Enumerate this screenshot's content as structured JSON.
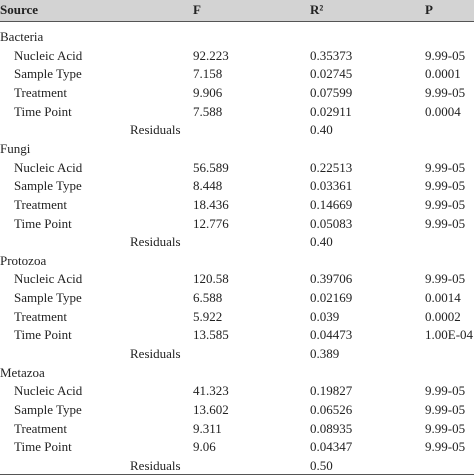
{
  "table": {
    "header": [
      "Source",
      "F",
      "R²",
      "P"
    ],
    "groups": [
      {
        "name": "Bacteria",
        "rows": [
          [
            "Nucleic Acid",
            "92.223",
            "0.35373",
            "9.99-05"
          ],
          [
            "Sample Type",
            "7.158",
            "0.02745",
            "0.0001"
          ],
          [
            "Treatment",
            "9.906",
            "0.07599",
            "9.99-05"
          ],
          [
            "Time Point",
            "7.588",
            "0.02911",
            "0.0004"
          ]
        ],
        "residuals": {
          "label": "Residuals",
          "r2": "0.40"
        }
      },
      {
        "name": "Fungi",
        "rows": [
          [
            "Nucleic Acid",
            "56.589",
            "0.22513",
            "9.99-05"
          ],
          [
            "Sample Type",
            "8.448",
            "0.03361",
            "9.99-05"
          ],
          [
            "Treatment",
            "18.436",
            "0.14669",
            "9.99-05"
          ],
          [
            "Time Point",
            "12.776",
            "0.05083",
            "9.99-05"
          ]
        ],
        "residuals": {
          "label": "Residuals",
          "r2": "0.40"
        }
      },
      {
        "name": "Protozoa",
        "rows": [
          [
            "Nucleic Acid",
            "120.58",
            "0.39706",
            "9.99-05"
          ],
          [
            "Sample Type",
            "6.588",
            "0.02169",
            "0.0014"
          ],
          [
            "Treatment",
            "5.922",
            "0.039",
            "0.0002"
          ],
          [
            "Time Point",
            "13.585",
            "0.04473",
            "1.00E-04"
          ]
        ],
        "residuals": {
          "label": "Residuals",
          "r2": "0.389"
        }
      },
      {
        "name": "Metazoa",
        "rows": [
          [
            "Nucleic Acid",
            "41.323",
            "0.19827",
            "9.99-05"
          ],
          [
            "Sample Type",
            "13.602",
            "0.06526",
            "9.99-05"
          ],
          [
            "Treatment",
            "9.311",
            "0.08935",
            "9.99-05"
          ],
          [
            "Time Point",
            "9.06",
            "0.04347",
            "9.99-05"
          ]
        ],
        "residuals": {
          "label": "Residuals",
          "r2": "0.50"
        }
      }
    ]
  }
}
